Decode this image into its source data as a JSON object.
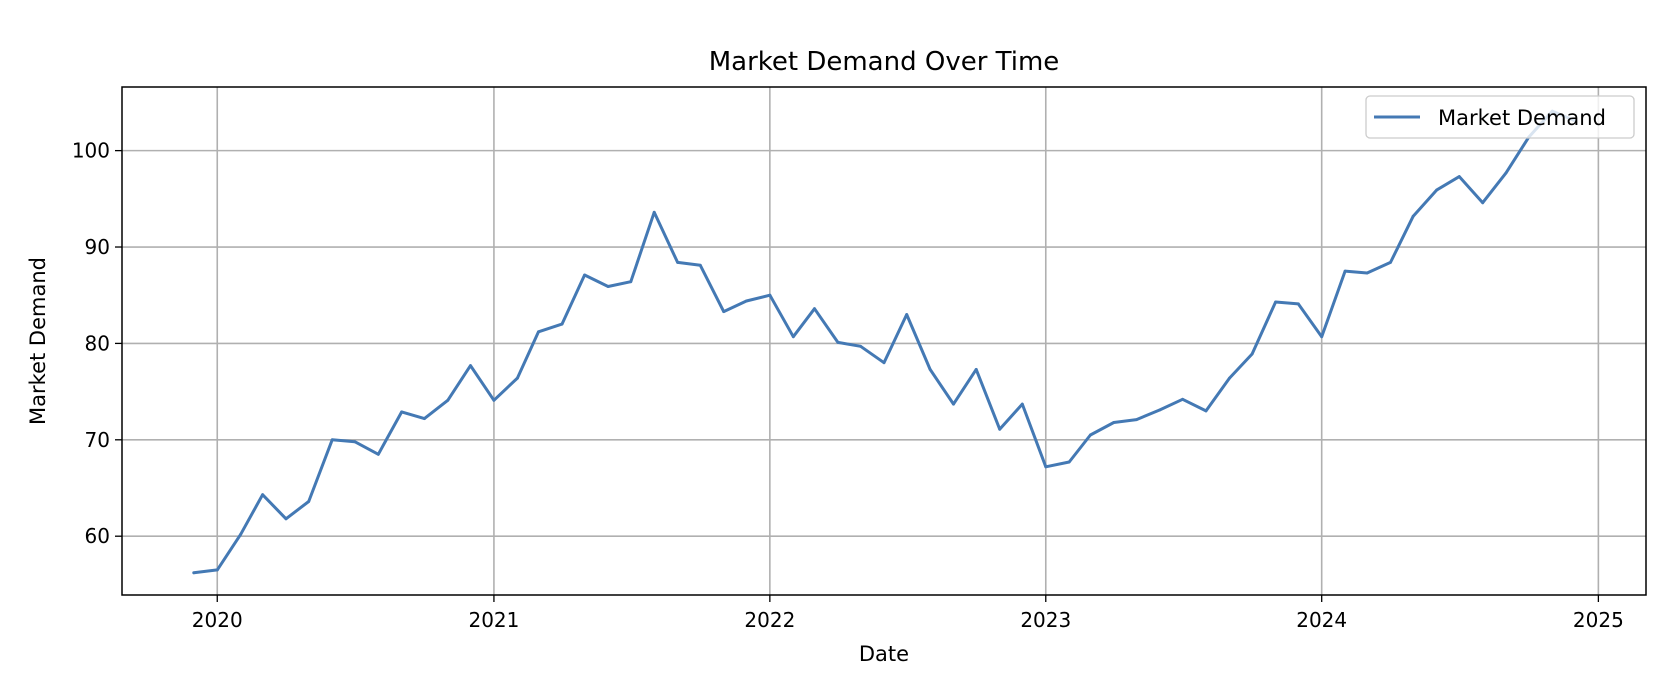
{
  "chart_data": {
    "type": "line",
    "title": "Market Demand Over Time",
    "xlabel": "Date",
    "ylabel": "Market Demand",
    "x_ticks": [
      "2020",
      "2021",
      "2022",
      "2023",
      "2024",
      "2025"
    ],
    "y_ticks": [
      60,
      70,
      80,
      90,
      100
    ],
    "xlim": [
      "2019-08-28",
      "2025-03-05"
    ],
    "ylim": [
      53.9,
      106.6
    ],
    "grid": true,
    "legend_position": "top-right",
    "series": [
      {
        "name": "Market Demand",
        "color": "#4479b4",
        "x": [
          "2019-12-01",
          "2020-01-01",
          "2020-02-01",
          "2020-03-01",
          "2020-04-01",
          "2020-05-01",
          "2020-06-01",
          "2020-07-01",
          "2020-08-01",
          "2020-09-01",
          "2020-10-01",
          "2020-11-01",
          "2020-12-01",
          "2021-01-01",
          "2021-02-01",
          "2021-03-01",
          "2021-04-01",
          "2021-05-01",
          "2021-06-01",
          "2021-07-01",
          "2021-08-01",
          "2021-09-01",
          "2021-10-01",
          "2021-11-01",
          "2021-12-01",
          "2022-01-01",
          "2022-02-01",
          "2022-03-01",
          "2022-04-01",
          "2022-05-01",
          "2022-06-01",
          "2022-07-01",
          "2022-08-01",
          "2022-09-01",
          "2022-10-01",
          "2022-11-01",
          "2022-12-01",
          "2023-01-01",
          "2023-02-01",
          "2023-03-01",
          "2023-04-01",
          "2023-05-01",
          "2023-06-01",
          "2023-07-01",
          "2023-08-01",
          "2023-09-01",
          "2023-10-01",
          "2023-11-01",
          "2023-12-01",
          "2024-01-01",
          "2024-02-01",
          "2024-03-01",
          "2024-04-01",
          "2024-05-01",
          "2024-06-01",
          "2024-07-01",
          "2024-08-01",
          "2024-09-01",
          "2024-10-01",
          "2024-11-01",
          "2024-12-01"
        ],
        "values": [
          56.2,
          56.5,
          60.2,
          64.3,
          61.8,
          63.6,
          70.0,
          69.8,
          68.5,
          72.9,
          72.2,
          74.1,
          77.7,
          74.1,
          76.4,
          81.2,
          82.0,
          87.1,
          85.9,
          86.4,
          93.6,
          88.4,
          88.1,
          83.3,
          84.4,
          85.0,
          80.7,
          83.6,
          80.1,
          79.7,
          78.0,
          83.0,
          77.3,
          73.7,
          77.3,
          71.1,
          73.7,
          67.2,
          67.7,
          70.5,
          71.8,
          72.1,
          73.1,
          74.2,
          73.0,
          76.4,
          78.9,
          84.3,
          84.1,
          80.7,
          87.5,
          87.3,
          88.4,
          93.2,
          95.9,
          97.3,
          94.6,
          97.7,
          101.4,
          104.1,
          103.1
        ]
      }
    ]
  }
}
